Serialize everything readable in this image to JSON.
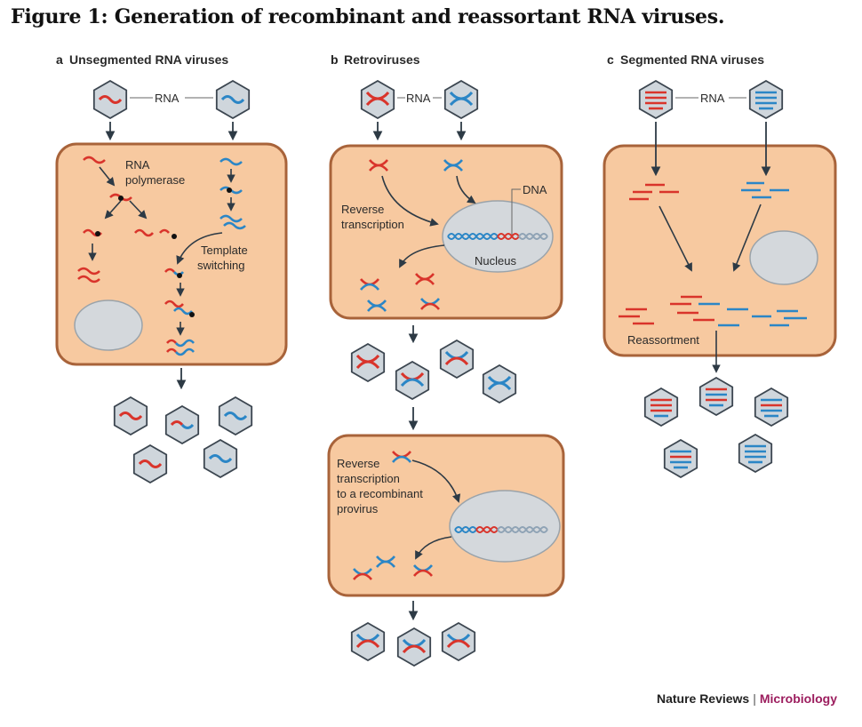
{
  "figure": {
    "title": "Figure 1: Generation of recombinant and reassortant RNA viruses."
  },
  "panels": {
    "a": {
      "letter": "a",
      "title": "Unsegmented RNA viruses",
      "rna_label": "RNA",
      "polymerase_label_1": "RNA",
      "polymerase_label_2": "polymerase",
      "template_label_1": "Template",
      "template_label_2": "switching"
    },
    "b": {
      "letter": "b",
      "title": "Retroviruses",
      "rna_label": "RNA",
      "rt_label_1": "Reverse",
      "rt_label_2": "transcription",
      "dna_label": "DNA",
      "nucleus_label": "Nucleus",
      "rt2_label_1": "Reverse",
      "rt2_label_2": "transcription",
      "rt2_label_3": "to a recombinant",
      "rt2_label_4": "provirus"
    },
    "c": {
      "letter": "c",
      "title": "Segmented RNA viruses",
      "rna_label": "RNA",
      "reassortment_label": "Reassortment"
    }
  },
  "credit": {
    "journal": "Nature Reviews",
    "separator": "|",
    "section": "Microbiology"
  },
  "colors": {
    "red": "#d9342b",
    "blue": "#2b86c6",
    "cell": "#f7c9a0",
    "cell_border": "#a8633a",
    "nucleus": "#d4d8dc",
    "capsid": "#cfd6dc"
  }
}
